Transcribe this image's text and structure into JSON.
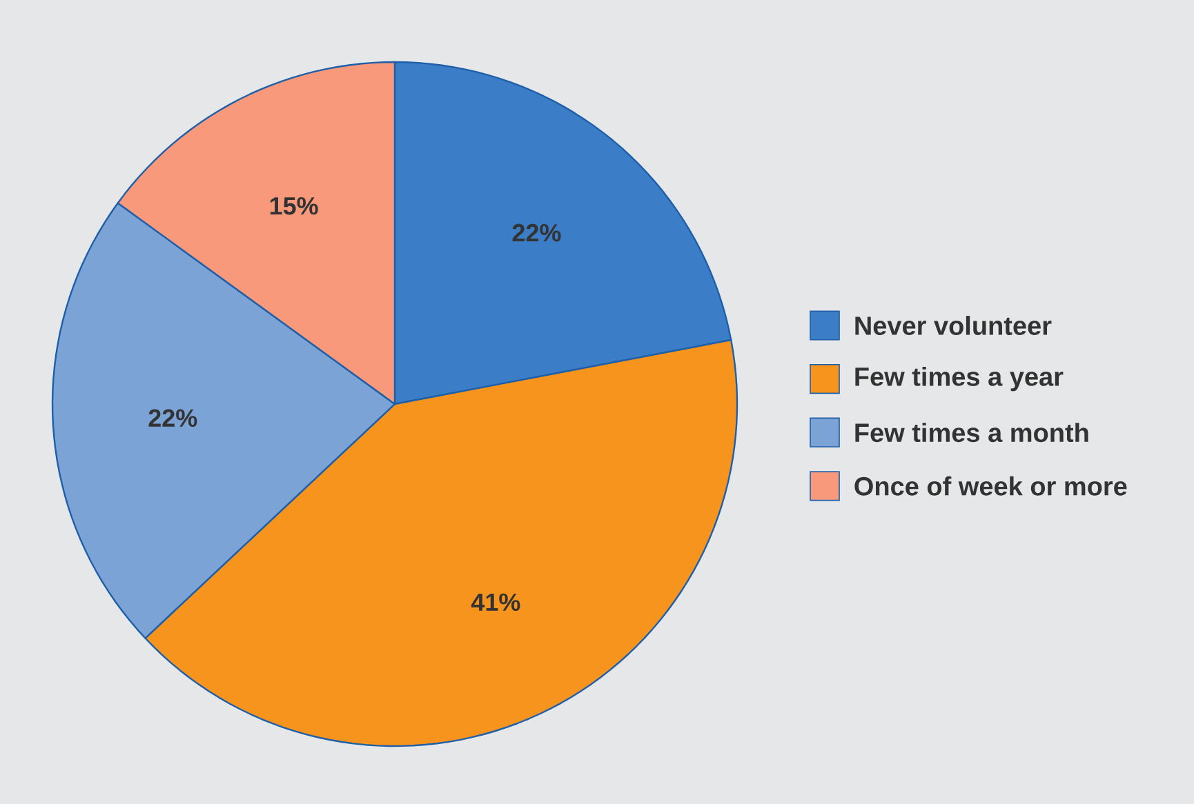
{
  "chart_data": {
    "type": "pie",
    "categories": [
      "Never volunteer",
      "Few times a year",
      "Few times a month",
      "Once of week or more"
    ],
    "values": [
      22,
      41,
      22,
      15
    ],
    "value_labels": [
      "22%",
      "41%",
      "22%",
      "15%"
    ],
    "colors": [
      "#3b7dc7",
      "#f7941d",
      "#7ba3d6",
      "#f8997c"
    ],
    "legend": "right"
  }
}
